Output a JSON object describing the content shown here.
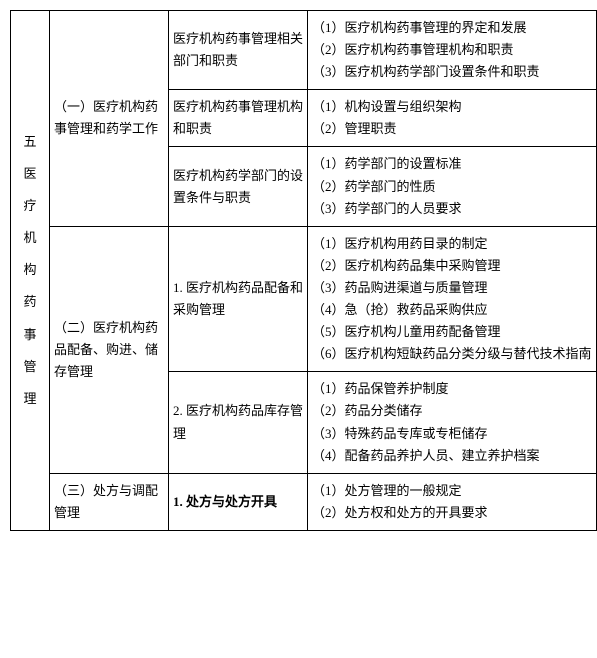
{
  "col1": {
    "chapter_num": "五",
    "chapter_title_chars": [
      "医",
      "疗",
      "机",
      "构",
      "药",
      "事",
      "管",
      "理"
    ]
  },
  "sections": {
    "s1": {
      "title": "（一）医疗机构药事管理和药学工作",
      "subs": {
        "a": {
          "title": "医疗机构药事管理相关部门和职责",
          "items": [
            "（1）医疗机构药事管理的界定和发展",
            "（2）医疗机构药事管理机构和职责",
            "（3）医疗机构药学部门设置条件和职责"
          ]
        },
        "b": {
          "title": "医疗机构药事管理机构和职责",
          "items": [
            "（1）机构设置与组织架构",
            "（2）管理职责"
          ]
        },
        "c": {
          "title": "医疗机构药学部门的设置条件与职责",
          "items": [
            "（1）药学部门的设置标准",
            "（2）药学部门的性质",
            "（3）药学部门的人员要求"
          ]
        }
      }
    },
    "s2": {
      "title": "（二）医疗机构药品配备、购进、储存管理",
      "subs": {
        "a": {
          "title": "1. 医疗机构药品配备和采购管理",
          "items": [
            "（1）医疗机构用药目录的制定",
            "（2）医疗机构药品集中采购管理",
            "（3）药品购进渠道与质量管理",
            "（4）急（抢）救药品采购供应",
            "（5）医疗机构儿童用药配备管理",
            "（6）医疗机构短缺药品分类分级与替代技术指南"
          ]
        },
        "b": {
          "title": "2. 医疗机构药品库存管理",
          "items": [
            "（1）药品保管养护制度",
            "（2）药品分类储存",
            "（3）特殊药品专库或专柜储存",
            "（4）配备药品养护人员、建立养护档案"
          ]
        }
      }
    },
    "s3": {
      "title_line1": "（三）处方与调配",
      "title_line2": "管理",
      "subs": {
        "a": {
          "title": "1. 处方与处方开具",
          "items": [
            "（1）处方管理的一般规定",
            "（2）处方权和处方的开具要求"
          ]
        }
      }
    }
  }
}
